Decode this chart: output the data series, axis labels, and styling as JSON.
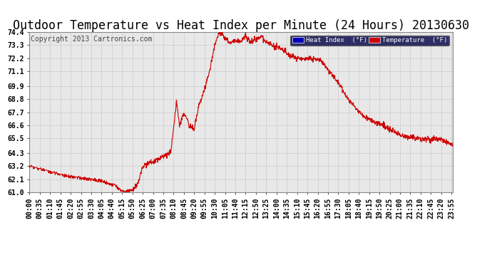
{
  "title": "Outdoor Temperature vs Heat Index per Minute (24 Hours) 20130630",
  "copyright": "Copyright 2013 Cartronics.com",
  "legend_heat_index": "Heat Index  (°F)",
  "legend_temperature": "Temperature  (°F)",
  "legend_heat_index_bg": "#0000bb",
  "legend_temperature_bg": "#cc0000",
  "bg_color": "#ffffff",
  "plot_bg_color": "#e8e8e8",
  "grid_color": "#bbbbbb",
  "line_color": "#cc0000",
  "ylim_min": 61.0,
  "ylim_max": 74.4,
  "yticks": [
    61.0,
    62.1,
    63.2,
    64.3,
    65.5,
    66.6,
    67.7,
    68.8,
    69.9,
    71.1,
    72.2,
    73.3,
    74.4
  ],
  "num_minutes": 1440,
  "title_fontsize": 12,
  "copyright_fontsize": 7,
  "tick_fontsize": 7,
  "xtick_interval": 35,
  "figwidth": 6.9,
  "figheight": 3.75,
  "dpi": 100
}
